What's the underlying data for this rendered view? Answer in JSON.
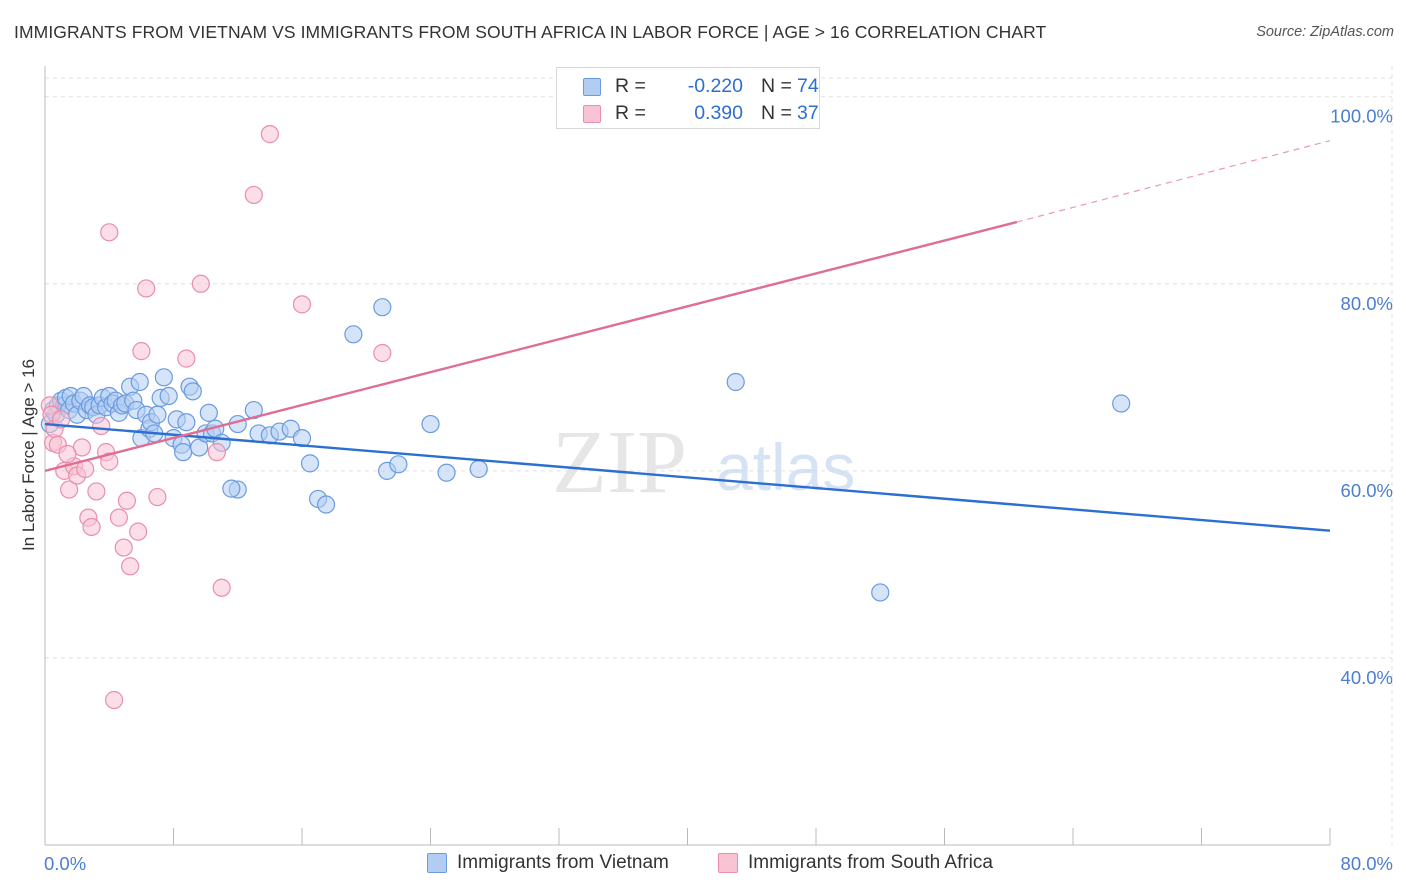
{
  "header": {
    "title": "IMMIGRANTS FROM VIETNAM VS IMMIGRANTS FROM SOUTH AFRICA IN LABOR FORCE | AGE > 16 CORRELATION CHART",
    "source": "Source: ZipAtlas.com"
  },
  "watermark": {
    "zip": "ZIP",
    "atlas": "atlas"
  },
  "legend_top": {
    "r_label": "R =",
    "n_label": "N =",
    "vietnam": {
      "r": "-0.220",
      "n": "74"
    },
    "south_africa": {
      "r": "0.390",
      "n": "37"
    }
  },
  "colors": {
    "vietnam_fill": "#b3cdf2",
    "vietnam_stroke": "#6a9be0",
    "vietnam_line": "#2c6fd1",
    "sa_fill": "#f8c3d3",
    "sa_stroke": "#ea8eab",
    "sa_line": "#e06d94",
    "axis_text": "#4a7fd0",
    "grid": "#e0e0e0"
  },
  "chart_data": {
    "type": "scatter",
    "title": "IMMIGRANTS FROM VIETNAM VS IMMIGRANTS FROM SOUTH AFRICA IN LABOR FORCE | AGE > 16 CORRELATION CHART",
    "xlabel": "",
    "ylabel": "In Labor Force | Age > 16",
    "xlim": [
      0,
      80
    ],
    "ylim": [
      20,
      102
    ],
    "x_tick_labels": [
      "0.0%",
      "80.0%"
    ],
    "y_ticks": [
      40,
      60,
      80,
      100
    ],
    "y_tick_labels": [
      "40.0%",
      "60.0%",
      "80.0%",
      "100.0%"
    ],
    "grid": true,
    "legend": "bottom-center",
    "series": [
      {
        "name": "Immigrants from Vietnam",
        "r": -0.22,
        "n": 74,
        "trend": {
          "x": [
            0,
            80
          ],
          "y": [
            65.0,
            53.6
          ]
        },
        "points": [
          [
            0.3,
            65.0
          ],
          [
            0.5,
            66.5
          ],
          [
            0.7,
            66.0
          ],
          [
            0.8,
            67.0
          ],
          [
            1.0,
            67.5
          ],
          [
            1.2,
            67.0
          ],
          [
            1.3,
            67.8
          ],
          [
            1.5,
            66.5
          ],
          [
            1.6,
            68.0
          ],
          [
            1.8,
            67.2
          ],
          [
            2.0,
            66.0
          ],
          [
            2.2,
            67.5
          ],
          [
            2.4,
            68.0
          ],
          [
            2.6,
            66.5
          ],
          [
            2.8,
            67.0
          ],
          [
            3.0,
            66.8
          ],
          [
            3.2,
            66.0
          ],
          [
            3.4,
            67.0
          ],
          [
            3.6,
            67.8
          ],
          [
            3.8,
            66.8
          ],
          [
            4.0,
            68.0
          ],
          [
            4.2,
            67.2
          ],
          [
            4.4,
            67.5
          ],
          [
            4.6,
            66.2
          ],
          [
            4.8,
            67.0
          ],
          [
            5.0,
            67.2
          ],
          [
            5.3,
            69.0
          ],
          [
            5.5,
            67.5
          ],
          [
            5.7,
            66.5
          ],
          [
            5.9,
            69.5
          ],
          [
            6.0,
            63.5
          ],
          [
            6.3,
            66.0
          ],
          [
            6.5,
            64.5
          ],
          [
            6.6,
            65.2
          ],
          [
            6.8,
            64.0
          ],
          [
            7.0,
            66.0
          ],
          [
            7.2,
            67.8
          ],
          [
            7.4,
            70.0
          ],
          [
            7.7,
            68.0
          ],
          [
            8.0,
            63.5
          ],
          [
            8.2,
            65.5
          ],
          [
            8.5,
            62.8
          ],
          [
            8.6,
            62.0
          ],
          [
            8.8,
            65.2
          ],
          [
            9.0,
            69.0
          ],
          [
            9.2,
            68.5
          ],
          [
            9.6,
            62.5
          ],
          [
            10.0,
            64.0
          ],
          [
            10.2,
            66.2
          ],
          [
            10.4,
            64.0
          ],
          [
            10.6,
            64.5
          ],
          [
            11.0,
            63.0
          ],
          [
            12.0,
            65.0
          ],
          [
            13.0,
            66.5
          ],
          [
            13.3,
            64.0
          ],
          [
            14.0,
            63.8
          ],
          [
            14.6,
            64.2
          ],
          [
            15.3,
            64.5
          ],
          [
            16.0,
            63.5
          ],
          [
            16.5,
            60.8
          ],
          [
            17.0,
            57.0
          ],
          [
            17.5,
            56.4
          ],
          [
            19.2,
            74.6
          ],
          [
            21.0,
            77.5
          ],
          [
            21.3,
            60.0
          ],
          [
            22.0,
            60.7
          ],
          [
            24.0,
            65.0
          ],
          [
            25.0,
            59.8
          ],
          [
            27.0,
            60.2
          ],
          [
            43.0,
            69.5
          ],
          [
            52.0,
            47.0
          ],
          [
            67.0,
            67.2
          ],
          [
            12.0,
            58.0
          ],
          [
            11.6,
            58.1
          ]
        ]
      },
      {
        "name": "Immigrants from South Africa",
        "r": 0.39,
        "n": 37,
        "trend": {
          "x": [
            0,
            60.5
          ],
          "y": [
            60.0,
            86.6
          ]
        },
        "trend_extension": {
          "x": [
            60.5,
            80
          ],
          "y": [
            86.6,
            95.3
          ]
        },
        "points": [
          [
            0.3,
            67.0
          ],
          [
            0.4,
            66.0
          ],
          [
            0.5,
            63.0
          ],
          [
            0.6,
            64.5
          ],
          [
            1.0,
            65.5
          ],
          [
            1.2,
            60.0
          ],
          [
            1.5,
            58.0
          ],
          [
            1.8,
            60.5
          ],
          [
            2.0,
            59.5
          ],
          [
            2.3,
            62.5
          ],
          [
            2.5,
            60.2
          ],
          [
            2.7,
            55.0
          ],
          [
            2.9,
            54.0
          ],
          [
            3.2,
            57.8
          ],
          [
            3.5,
            64.8
          ],
          [
            3.8,
            62.0
          ],
          [
            4.0,
            61.0
          ],
          [
            4.3,
            35.5
          ],
          [
            4.6,
            55.0
          ],
          [
            4.9,
            51.8
          ],
          [
            5.1,
            56.8
          ],
          [
            5.3,
            49.8
          ],
          [
            5.8,
            53.5
          ],
          [
            6.0,
            72.8
          ],
          [
            6.3,
            79.5
          ],
          [
            7.0,
            57.2
          ],
          [
            8.8,
            72.0
          ],
          [
            9.7,
            80.0
          ],
          [
            10.7,
            62.0
          ],
          [
            11.0,
            47.5
          ],
          [
            13.0,
            89.5
          ],
          [
            14.0,
            96.0
          ],
          [
            16.0,
            77.8
          ],
          [
            21.0,
            72.6
          ],
          [
            4.0,
            85.5
          ],
          [
            0.8,
            62.8
          ],
          [
            1.4,
            61.8
          ]
        ]
      }
    ]
  },
  "bottom_legend": {
    "vietnam": "Immigrants from Vietnam",
    "south_africa": "Immigrants from South Africa"
  }
}
